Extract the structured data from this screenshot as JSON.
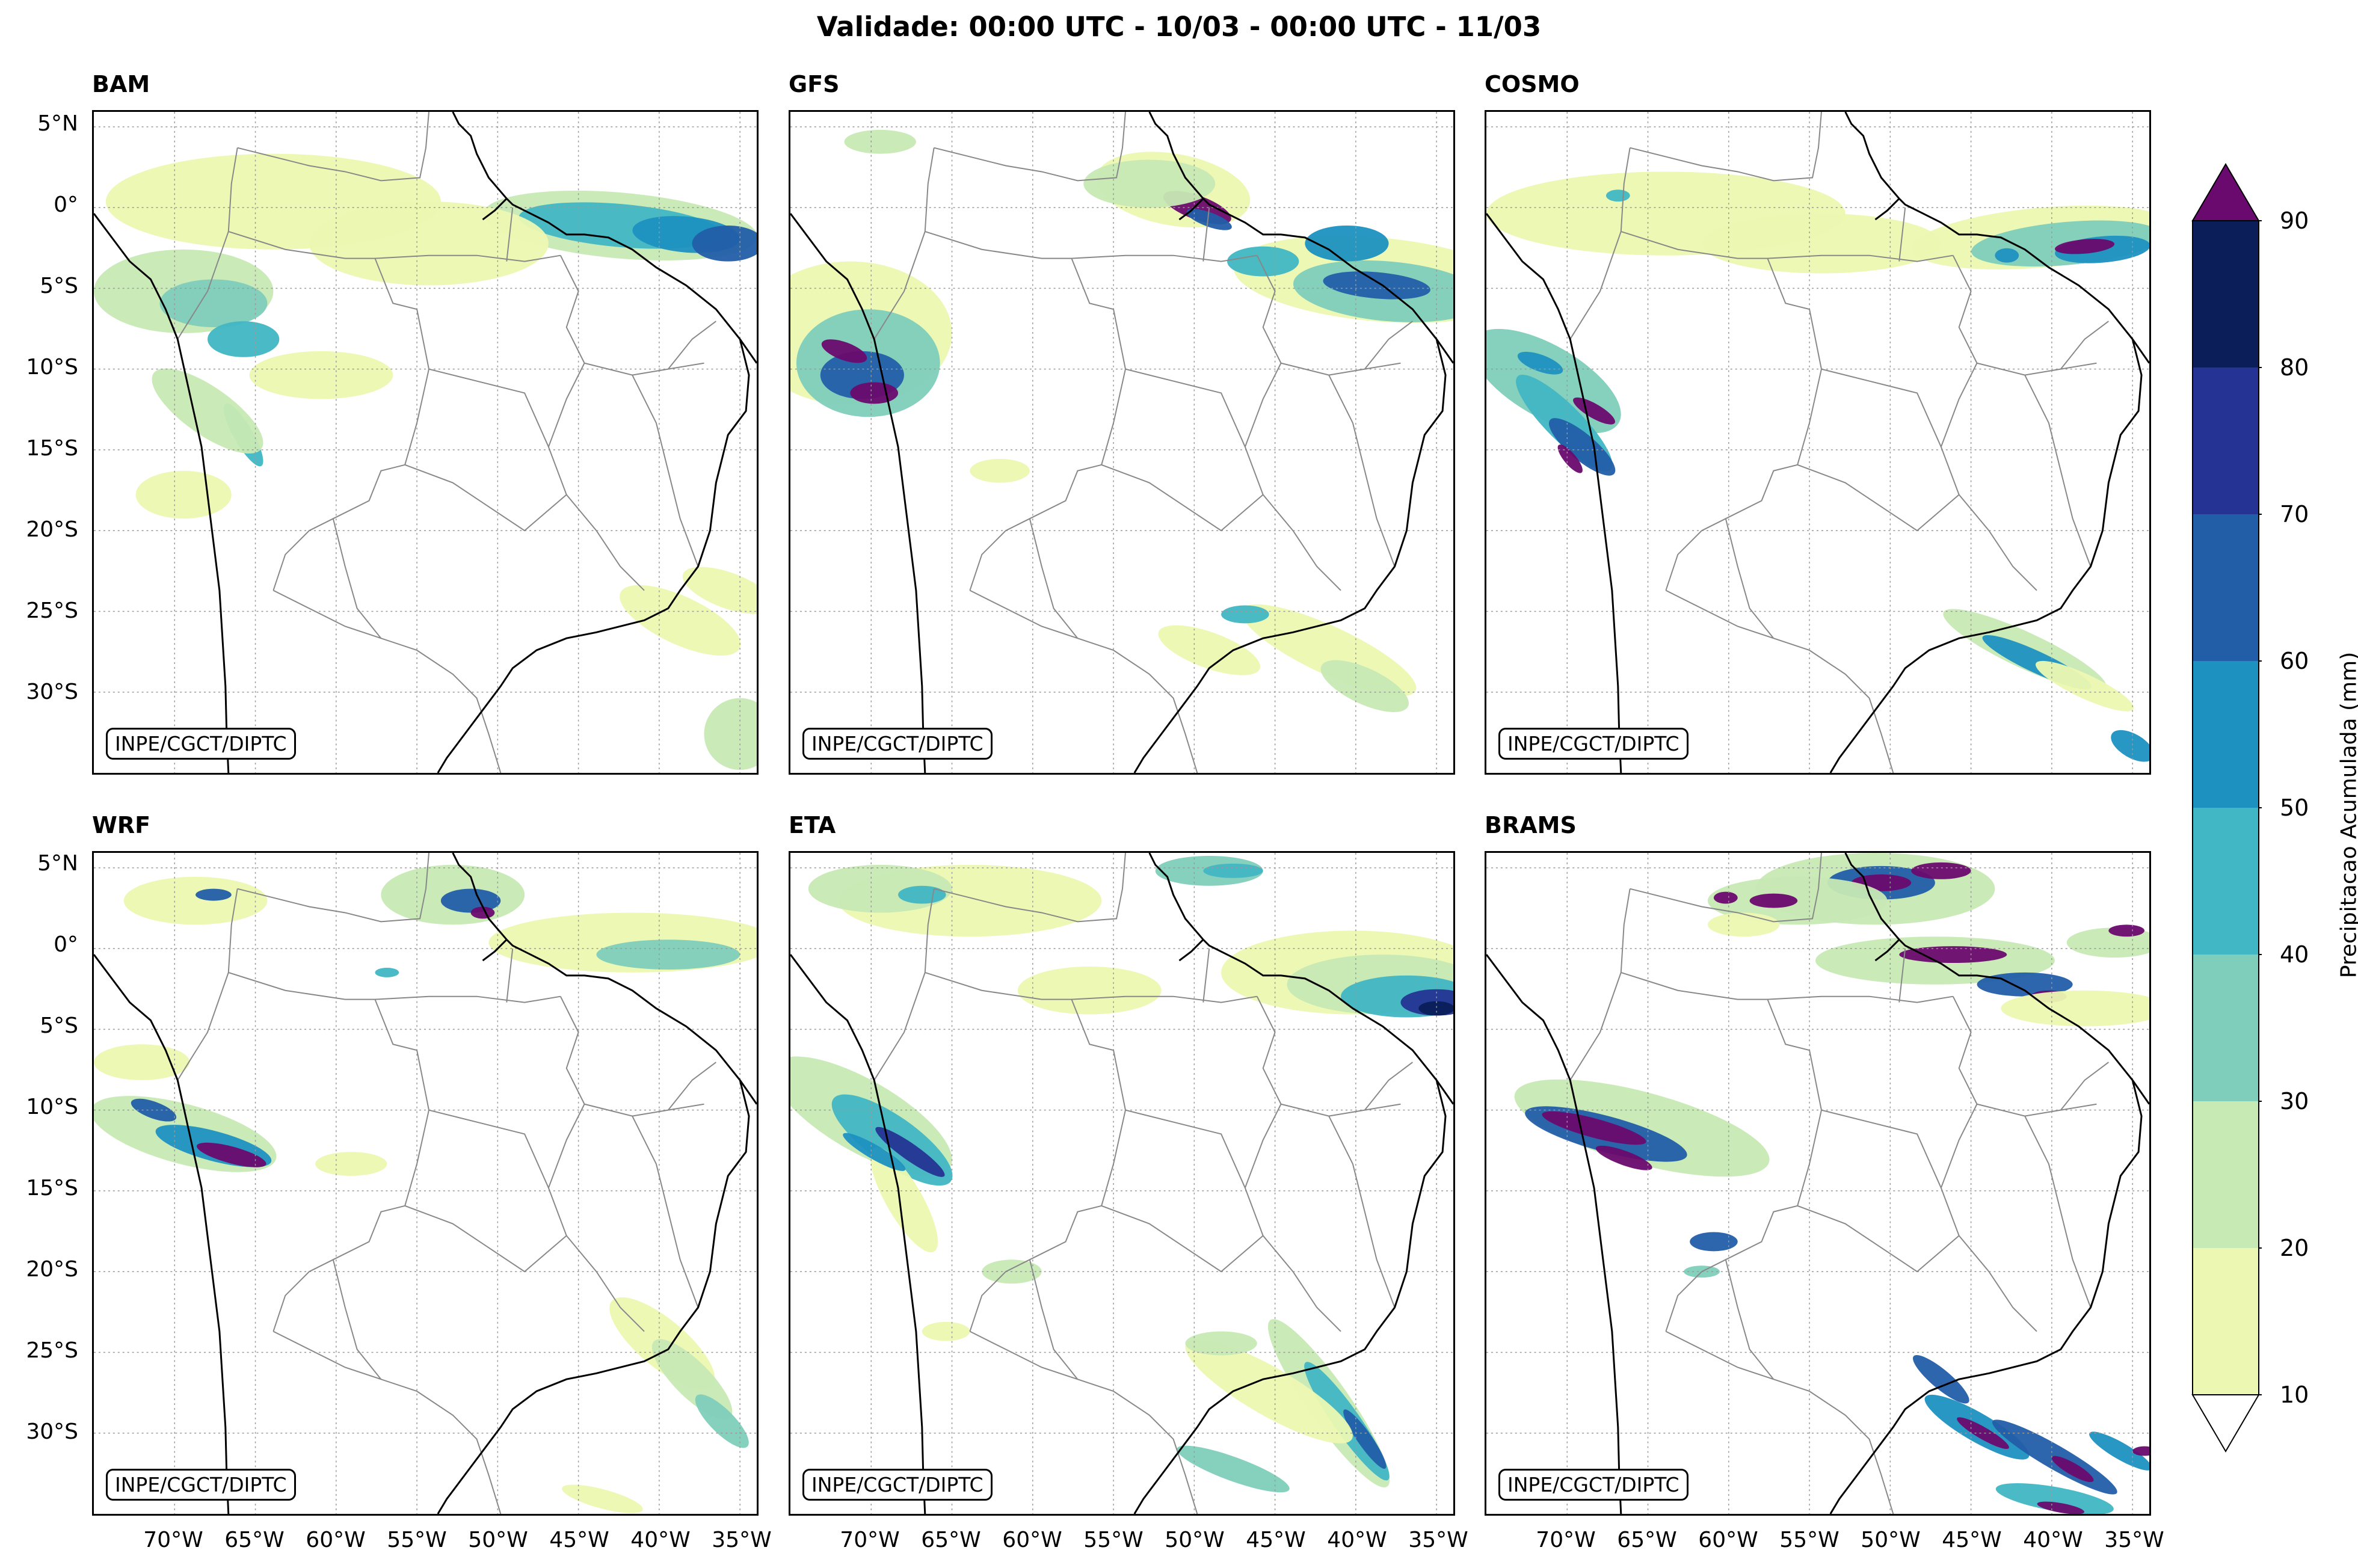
{
  "title": "Validade: 00:00 UTC - 10/03 - 00:00 UTC - 11/03",
  "credit": "INPE/CGCT/DIPTC",
  "panels": [
    {
      "name": "BAM"
    },
    {
      "name": "GFS"
    },
    {
      "name": "COSMO"
    },
    {
      "name": "WRF"
    },
    {
      "name": "ETA"
    },
    {
      "name": "BRAMS"
    }
  ],
  "lat_labels": [
    "5°N",
    "0°",
    "5°S",
    "10°S",
    "15°S",
    "20°S",
    "25°S",
    "30°S"
  ],
  "lon_labels": [
    "70°W",
    "65°W",
    "60°W",
    "55°W",
    "50°W",
    "45°W",
    "40°W",
    "35°W"
  ],
  "colorbar": {
    "label": "Precipitacao Acumulada (mm)",
    "ticks": [
      "10",
      "20",
      "30",
      "40",
      "50",
      "60",
      "70",
      "80",
      "90"
    ],
    "colors": [
      "#ecf8b1",
      "#c7e9b4",
      "#7fcdbb",
      "#41b6c4",
      "#1d91c0",
      "#225ea8",
      "#253494",
      "#0b1e5a"
    ],
    "over_color": "#6a0a6e",
    "under_color": "#ffffff"
  }
}
